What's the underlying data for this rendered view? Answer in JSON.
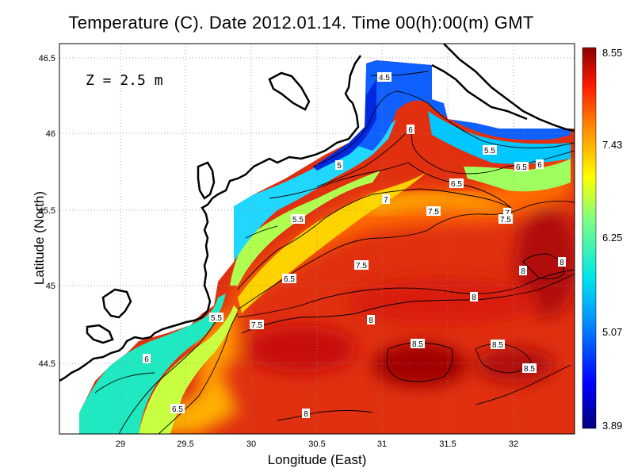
{
  "title": "Temperature (C). Date 2012.01.14. Time 00(h):00(m) GMT",
  "depth_label": "Z = 2.5 m",
  "xlabel": "Longitude (East)",
  "ylabel": "Latitude (North)",
  "x_ticks": [
    "29",
    "29.5",
    "30",
    "30.5",
    "31",
    "31.5",
    "32"
  ],
  "y_ticks": [
    "44.5",
    "45",
    "45.5",
    "46",
    "46.5"
  ],
  "colorbar_ticks": [
    "8.55",
    "7.43",
    "6.25",
    "5.07",
    "3.89"
  ],
  "contour_labels": [
    "4.5",
    "5",
    "5.5",
    "6",
    "6.5",
    "7",
    "7.5",
    "8",
    "8.5"
  ],
  "chart_data": {
    "type": "heatmap",
    "title": "Temperature (C). Date 2012.01.14. Time 00(h):00(m) GMT",
    "xlabel": "Longitude (East)",
    "ylabel": "Latitude (North)",
    "xlim": [
      28.55,
      32.48
    ],
    "ylim": [
      44.05,
      46.55
    ],
    "colorbar_range": [
      3.89,
      8.55
    ],
    "grid": true,
    "annotation": "Z = 2.5 m"
  }
}
